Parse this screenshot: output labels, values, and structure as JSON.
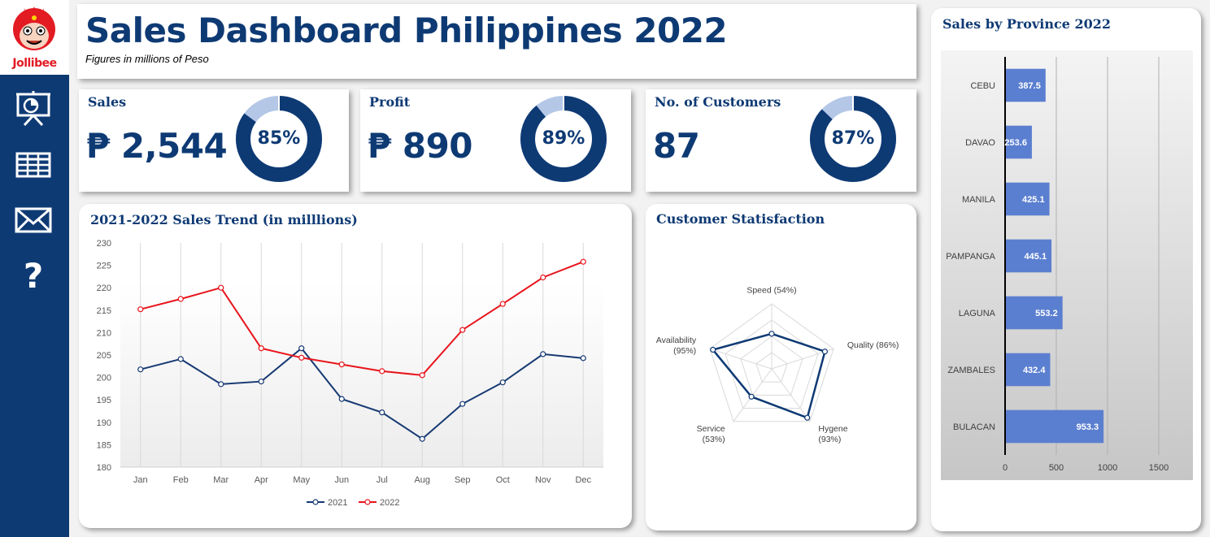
{
  "brand": {
    "logo_text": "Jollibee"
  },
  "sidebar": {
    "icons": [
      "presentation-chart-icon",
      "table-grid-icon",
      "mail-icon",
      "help-question-icon"
    ]
  },
  "header": {
    "title": "Sales Dashboard Philippines 2022",
    "subtitle": "Figures in millions of Peso"
  },
  "kpis": [
    {
      "label": "Sales",
      "value": "₱ 2,544",
      "percent_label": "85%",
      "percent": 85
    },
    {
      "label": "Profit",
      "value": "₱ 890",
      "percent_label": "89%",
      "percent": 89
    },
    {
      "label": "No. of Customers",
      "value": "87",
      "percent_label": "87%",
      "percent": 87
    }
  ],
  "colors": {
    "navy": "#0e3a74",
    "donut_light": "#b4c7e7",
    "series_2021": "#173a73",
    "series_2022": "#e8141b",
    "bar": "#5b7fd0"
  },
  "chart_data": [
    {
      "type": "line",
      "title": "2021-2022 Sales Trend (in milllions)",
      "categories": [
        "Jan",
        "Feb",
        "Mar",
        "Apr",
        "May",
        "Jun",
        "Jul",
        "Aug",
        "Sep",
        "Oct",
        "Nov",
        "Dec"
      ],
      "series": [
        {
          "name": "2021",
          "values": [
            201.8,
            204.1,
            198.5,
            199.1,
            206.5,
            195.2,
            192.2,
            186.3,
            194.1,
            198.9,
            205.2,
            204.3
          ]
        },
        {
          "name": "2022",
          "values": [
            215.2,
            217.5,
            220.0,
            206.5,
            204.4,
            202.9,
            201.4,
            200.5,
            210.6,
            216.4,
            222.3,
            225.8
          ]
        }
      ],
      "ylim": [
        180,
        230
      ],
      "yticks": [
        180,
        185,
        190,
        195,
        200,
        205,
        210,
        215,
        220,
        225,
        230
      ],
      "grid": "vertical",
      "legend": "bottom"
    },
    {
      "type": "radar",
      "title": "Customer Statisfaction",
      "axes": [
        "Speed (54%)",
        "Quality (86%)",
        "Hygene (93%)",
        "Service (53%)",
        "Availability (95%)"
      ],
      "values": [
        54,
        86,
        93,
        53,
        95
      ],
      "range": [
        0,
        100
      ]
    },
    {
      "type": "bar",
      "orientation": "horizontal",
      "title": "Sales by Province 2022",
      "categories": [
        "CEBU",
        "DAVAO",
        "MANILA",
        "PAMPANGA",
        "LAGUNA",
        "ZAMBALES",
        "BULACAN"
      ],
      "values": [
        387.5,
        253.6,
        425.1,
        445.1,
        553.2,
        432.4,
        953.3
      ],
      "value_labels": [
        "387.5",
        "253.6",
        "425.1",
        "445.1",
        "553.2",
        "432.4",
        "953.3"
      ],
      "xticks": [
        0,
        500,
        1000,
        1500
      ],
      "xlim": [
        0,
        1500
      ],
      "grid": "vertical"
    }
  ]
}
